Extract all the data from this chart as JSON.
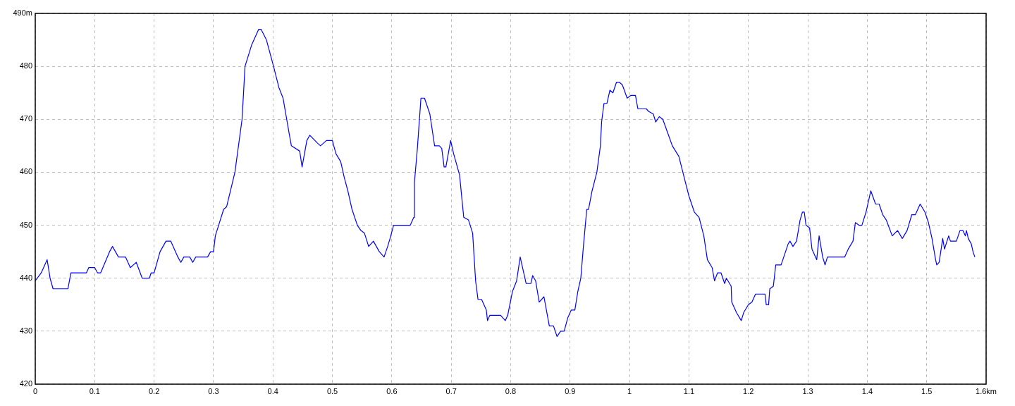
{
  "chart_data": {
    "type": "line",
    "color": "#0000ff",
    "marker": "none",
    "line_style": "solid",
    "grid": true,
    "xlim": [
      0,
      1.6
    ],
    "xticks": [
      0,
      0.1,
      0.2,
      0.3,
      0.4,
      0.5,
      0.6,
      0.7,
      0.8,
      0.9,
      1,
      1.1,
      1.2,
      1.3,
      1.4,
      1.5,
      {
        "value": 1.6,
        "label": "1.6km"
      }
    ],
    "ylim": [
      420,
      490
    ],
    "yticks": [
      420,
      430,
      440,
      450,
      460,
      470,
      480,
      {
        "value": 490,
        "label": "490m"
      }
    ],
    "x": [
      0,
      0.01,
      0.02,
      0.025,
      0.03,
      0.055,
      0.06,
      0.086,
      0.09,
      0.1,
      0.105,
      0.11,
      0.125,
      0.13,
      0.14,
      0.152,
      0.16,
      0.17,
      0.18,
      0.192,
      0.195,
      0.2,
      0.21,
      0.22,
      0.228,
      0.24,
      0.245,
      0.25,
      0.26,
      0.265,
      0.27,
      0.29,
      0.295,
      0.3,
      0.303,
      0.317,
      0.322,
      0.336,
      0.348,
      0.353,
      0.364,
      0.376,
      0.38,
      0.389,
      0.401,
      0.41,
      0.417,
      0.427,
      0.431,
      0.445,
      0.449,
      0.457,
      0.462,
      0.475,
      0.48,
      0.49,
      0.5,
      0.506,
      0.514,
      0.52,
      0.526,
      0.533,
      0.542,
      0.548,
      0.554,
      0.561,
      0.569,
      0.579,
      0.587,
      0.593,
      0.597,
      0.603,
      0.631,
      0.637,
      0.638,
      0.643,
      0.649,
      0.655,
      0.664,
      0.672,
      0.68,
      0.684,
      0.688,
      0.691,
      0.699,
      0.704,
      0.714,
      0.721,
      0.729,
      0.736,
      0.741,
      0.745,
      0.751,
      0.759,
      0.761,
      0.765,
      0.783,
      0.791,
      0.795,
      0.803,
      0.81,
      0.816,
      0.826,
      0.834,
      0.837,
      0.842,
      0.848,
      0.856,
      0.865,
      0.872,
      0.878,
      0.884,
      0.89,
      0.896,
      0.902,
      0.908,
      0.913,
      0.918,
      0.922,
      0.928,
      0.931,
      0.937,
      0.945,
      0.951,
      0.953,
      0.957,
      0.962,
      0.967,
      0.972,
      0.978,
      0.983,
      0.988,
      0.996,
      1.002,
      1.01,
      1.014,
      1.028,
      1.032,
      1.04,
      1.044,
      1.05,
      1.056,
      1.064,
      1.072,
      1.083,
      1.092,
      1.1,
      1.109,
      1.117,
      1.125,
      1.131,
      1.139,
      1.143,
      1.148,
      1.154,
      1.16,
      1.163,
      1.171,
      1.172,
      1.18,
      1.188,
      1.192,
      1.2,
      1.206,
      1.212,
      1.219,
      1.228,
      1.23,
      1.234,
      1.236,
      1.242,
      1.246,
      1.255,
      1.261,
      1.267,
      1.27,
      1.275,
      1.281,
      1.287,
      1.291,
      1.294,
      1.297,
      1.303,
      1.307,
      1.315,
      1.319,
      1.325,
      1.329,
      1.333,
      1.362,
      1.368,
      1.376,
      1.38,
      1.386,
      1.391,
      1.398,
      1.406,
      1.414,
      1.42,
      1.426,
      1.432,
      1.442,
      1.451,
      1.459,
      1.467,
      1.475,
      1.481,
      1.489,
      1.497,
      1.503,
      1.509,
      1.515,
      1.517,
      1.521,
      1.527,
      1.53,
      1.537,
      1.54,
      1.55,
      1.556,
      1.561,
      1.565,
      1.567,
      1.57,
      1.575,
      1.578,
      1.581
    ],
    "values": [
      439.5,
      441,
      443.5,
      440,
      438,
      438,
      441,
      441,
      442,
      442,
      441,
      441,
      445,
      446,
      444,
      444,
      442,
      443,
      440,
      440,
      441,
      441,
      445,
      447,
      447,
      444,
      443,
      444,
      444,
      443,
      444,
      444,
      445,
      445,
      448,
      453,
      453.5,
      460,
      470,
      480,
      484,
      487,
      487,
      485,
      480,
      476,
      474,
      467.5,
      465,
      464,
      461,
      466,
      467,
      465.5,
      465,
      466,
      466,
      463.5,
      462,
      459,
      456.5,
      453,
      450,
      449,
      448.5,
      446,
      447,
      445,
      444,
      446,
      447.5,
      450,
      450,
      451.5,
      458,
      464.5,
      474,
      474,
      471,
      465,
      465,
      464.5,
      461,
      461,
      466,
      463.5,
      459.5,
      451.5,
      451,
      448.5,
      439.5,
      436,
      436,
      434,
      432,
      433,
      433,
      432,
      433,
      437.5,
      439.5,
      444,
      439,
      439,
      440.5,
      439.5,
      435.5,
      436.5,
      431,
      431,
      429,
      430,
      430,
      432.5,
      434,
      434,
      437.5,
      440,
      445.5,
      453,
      453,
      456.5,
      460,
      465,
      469.5,
      473,
      473,
      475.5,
      475,
      477,
      477,
      476.5,
      474,
      474.5,
      474.5,
      472,
      472,
      471.5,
      471,
      469.5,
      470.5,
      470,
      467.5,
      465,
      463,
      459,
      455.5,
      452.5,
      451.5,
      448,
      443.5,
      442,
      439.5,
      441,
      441,
      439,
      440,
      438.5,
      435.5,
      433.5,
      432,
      433.5,
      435,
      435.5,
      437,
      437,
      437,
      435,
      435,
      438,
      438.5,
      442.5,
      442.5,
      444.5,
      446.5,
      447,
      446,
      447,
      451,
      452.5,
      452.5,
      450,
      449.5,
      445.5,
      443.5,
      448,
      444,
      442.5,
      444,
      444,
      445.5,
      447,
      450.5,
      450,
      450,
      452.5,
      456.5,
      454,
      454,
      452,
      451,
      448,
      449,
      447.5,
      449,
      452,
      452,
      454,
      452.5,
      450.5,
      447.5,
      443.5,
      442.5,
      443,
      447.5,
      445.5,
      448,
      447,
      447,
      449,
      449,
      448,
      449,
      447.5,
      446.5,
      445,
      444
    ]
  }
}
